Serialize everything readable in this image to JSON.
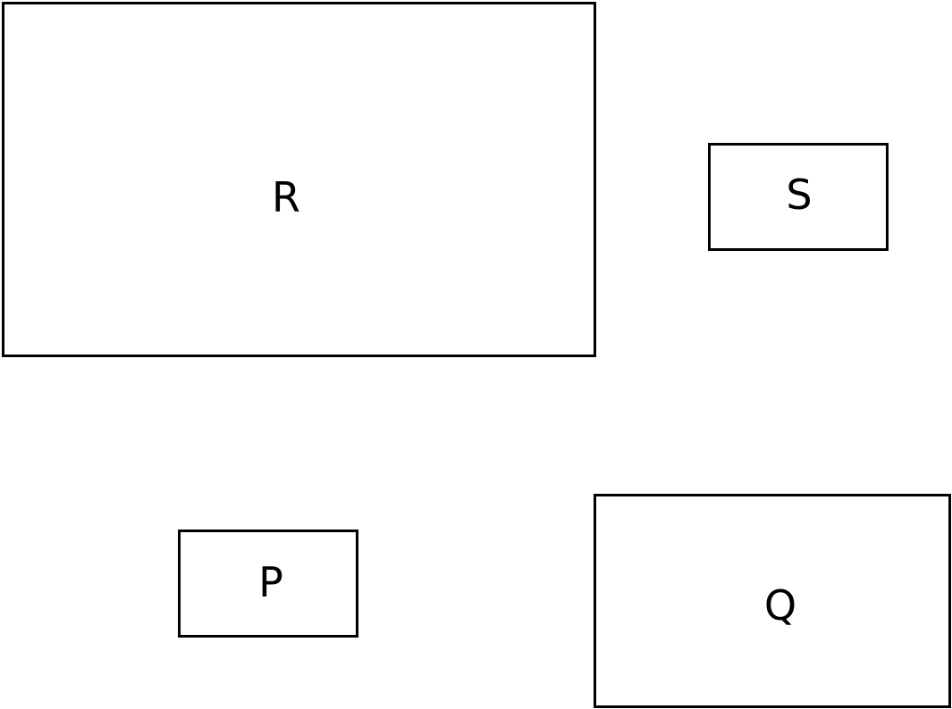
{
  "diagram": {
    "boxes": [
      {
        "id": "R",
        "label": "R"
      },
      {
        "id": "S",
        "label": "S"
      },
      {
        "id": "P",
        "label": "P"
      },
      {
        "id": "Q",
        "label": "Q"
      }
    ],
    "colors": {
      "stroke": "#000000",
      "fill": "#ffffff",
      "text": "#000000"
    }
  }
}
